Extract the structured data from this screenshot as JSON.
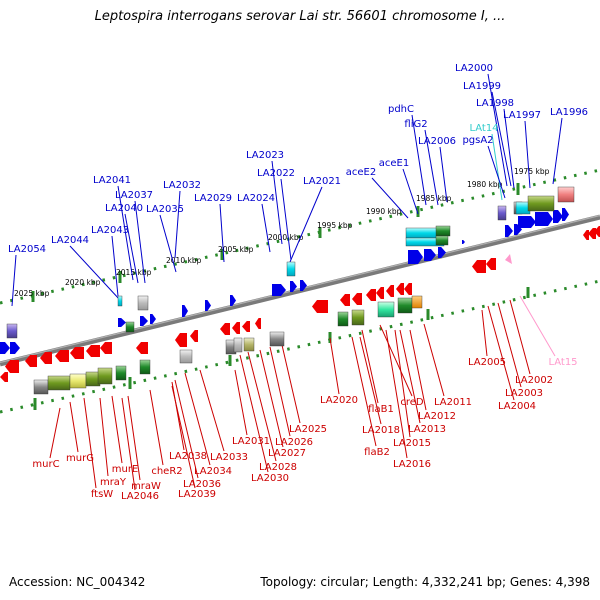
{
  "title": "Leptospira interrogans serovar Lai str. 56601 chromosome I, ...",
  "footer": {
    "accession": "Accession: NC_004342",
    "topology": "Topology: circular; Length: 4,332,241 bp; Genes: 4,398"
  },
  "colors": {
    "forward_label": "#0000cc",
    "reverse_label": "#cc0000",
    "rna_forward": "#33cccc",
    "rna_reverse": "#ff99cc",
    "backbone": "#808080",
    "tick": "#228822"
  },
  "ticks": [
    "1975 kbp",
    "1980 kbp",
    "1985 kbp",
    "1990 kbp",
    "1995 kbp",
    "2000 kbp",
    "2005 kbp",
    "2010 kbp",
    "2015 kbp",
    "2020 kbp",
    "2025 kbp"
  ],
  "forward_labels": [
    "LA2000",
    "LA1999",
    "LA1998",
    "LA1997",
    "LA1996",
    "LAt14",
    "pgsA2",
    "LA2006",
    "fliG2",
    "pdhC",
    "aceE1",
    "aceE2",
    "LA2021",
    "LA2022",
    "LA2023",
    "LA2024",
    "LA2029",
    "LA2032",
    "LA2035",
    "LA2037",
    "LA2040",
    "LA2041",
    "LA2043",
    "LA2044",
    "LA2054"
  ],
  "reverse_labels": [
    "LA2005",
    "LAt15",
    "LA2002",
    "LA2003",
    "LA2004",
    "LA2011",
    "LA2012",
    "LA2013",
    "creD",
    "LA2015",
    "LA2016",
    "flaB1",
    "LA2018",
    "flaB2",
    "LA2020",
    "LA2025",
    "LA2026",
    "LA2027",
    "LA2028",
    "LA2030",
    "LA2031",
    "LA2033",
    "LA2034",
    "LA2036",
    "LA2038",
    "LA2039",
    "cheR2",
    "mraW",
    "LA2046",
    "murE",
    "mraY",
    "ftsW",
    "murG",
    "murC"
  ]
}
